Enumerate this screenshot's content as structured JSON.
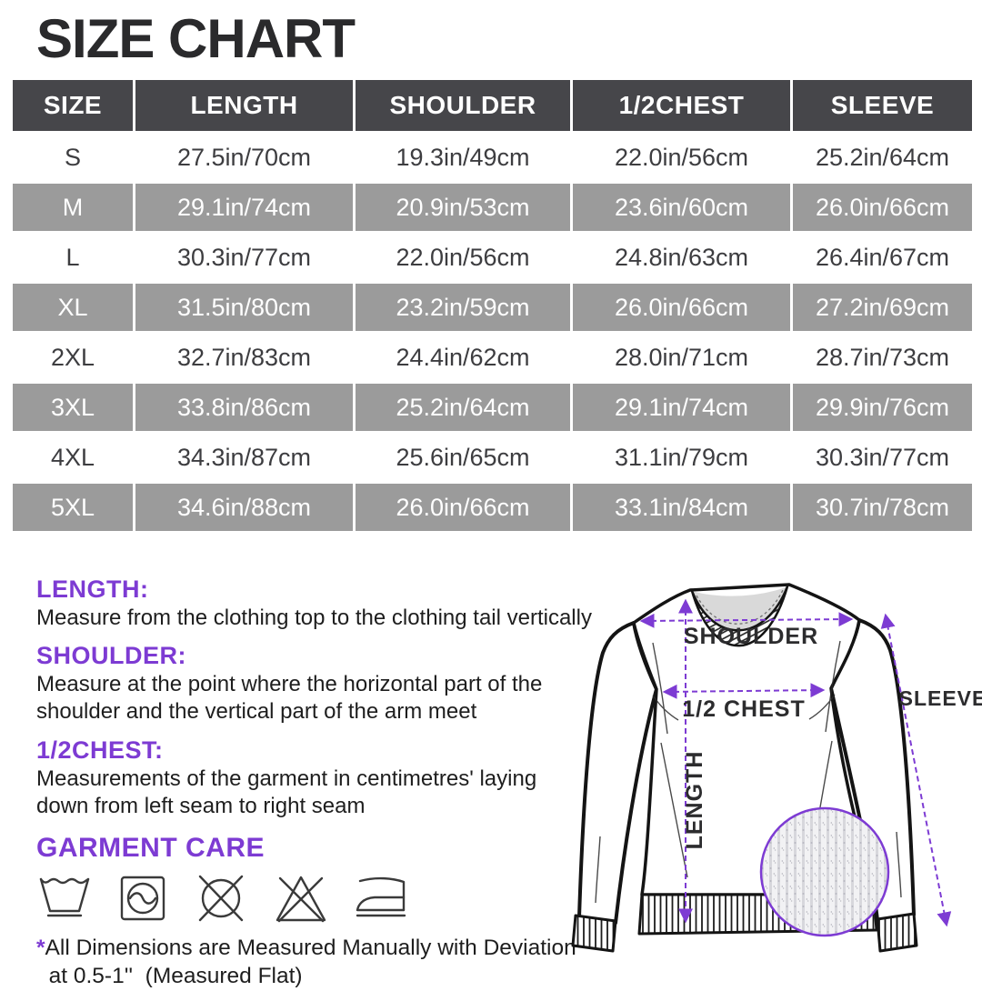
{
  "page": {
    "title": "SIZE CHART"
  },
  "table": {
    "columns": [
      "SIZE",
      "LENGTH",
      "SHOULDER",
      "1/2CHEST",
      "SLEEVE"
    ],
    "rows": [
      {
        "size": "S",
        "values": [
          "27.5in/70cm",
          "19.3in/49cm",
          "22.0in/56cm",
          "25.2in/64cm"
        ]
      },
      {
        "size": "M",
        "values": [
          "29.1in/74cm",
          "20.9in/53cm",
          "23.6in/60cm",
          "26.0in/66cm"
        ]
      },
      {
        "size": "L",
        "values": [
          "30.3in/77cm",
          "22.0in/56cm",
          "24.8in/63cm",
          "26.4in/67cm"
        ]
      },
      {
        "size": "XL",
        "values": [
          "31.5in/80cm",
          "23.2in/59cm",
          "26.0in/66cm",
          "27.2in/69cm"
        ]
      },
      {
        "size": "2XL",
        "values": [
          "32.7in/83cm",
          "24.4in/62cm",
          "28.0in/71cm",
          "28.7in/73cm"
        ]
      },
      {
        "size": "3XL",
        "values": [
          "33.8in/86cm",
          "25.2in/64cm",
          "29.1in/74cm",
          "29.9in/76cm"
        ]
      },
      {
        "size": "4XL",
        "values": [
          "34.3in/87cm",
          "25.6in/65cm",
          "31.1in/79cm",
          "30.3in/77cm"
        ]
      },
      {
        "size": "5XL",
        "values": [
          "34.6in/88cm",
          "26.0in/66cm",
          "33.1in/84cm",
          "30.7in/78cm"
        ]
      }
    ]
  },
  "chart_data": {
    "type": "table",
    "columns": [
      "SIZE",
      "LENGTH",
      "SHOULDER",
      "1/2CHEST",
      "SLEEVE"
    ],
    "rows": [
      [
        "S",
        "27.5in/70cm",
        "19.3in/49cm",
        "22.0in/56cm",
        "25.2in/64cm"
      ],
      [
        "M",
        "29.1in/74cm",
        "20.9in/53cm",
        "23.6in/60cm",
        "26.0in/66cm"
      ],
      [
        "L",
        "30.3in/77cm",
        "22.0in/56cm",
        "24.8in/63cm",
        "26.4in/67cm"
      ],
      [
        "XL",
        "31.5in/80cm",
        "23.2in/59cm",
        "26.0in/66cm",
        "27.2in/69cm"
      ],
      [
        "2XL",
        "32.7in/83cm",
        "24.4in/62cm",
        "28.0in/71cm",
        "28.7in/73cm"
      ],
      [
        "3XL",
        "33.8in/86cm",
        "25.2in/64cm",
        "29.1in/74cm",
        "29.9in/76cm"
      ],
      [
        "4XL",
        "34.3in/87cm",
        "25.6in/65cm",
        "31.1in/79cm",
        "30.3in/77cm"
      ],
      [
        "5XL",
        "34.6in/88cm",
        "26.0in/66cm",
        "33.1in/84cm",
        "30.7in/78cm"
      ]
    ],
    "title": "SIZE CHART"
  },
  "sections": [
    {
      "heading": "LENGTH:",
      "body": "Measure from the clothing top to the clothing tail vertically"
    },
    {
      "heading": "SHOULDER:",
      "body": "Measure at the point where the horizontal part of the\nshoulder and the vertical part of the arm meet"
    },
    {
      "heading": "1/2CHEST:",
      "body": "Measurements of the garment in centimetres' laying\ndown from left seam to right seam"
    }
  ],
  "garment_care": {
    "heading": "GARMENT CARE",
    "icons": [
      "wash-tub-icon",
      "machine-wash-icon",
      "do-not-dry-clean-icon",
      "do-not-bleach-icon",
      "iron-icon"
    ]
  },
  "footnote": {
    "star": "*",
    "text": "All Dimensions are Measured Manually with Deviation\n  at 0.5-1''  (Measured Flat)"
  },
  "diagram": {
    "labels": {
      "shoulder": "SHOULDER",
      "half_chest": "1/2 CHEST",
      "length": "LENGTH",
      "sleeve": "SLEEVE"
    }
  },
  "colors": {
    "accent_purple": "#7d3bd3",
    "header_bg": "#46464a",
    "row_gray": "#9b9b9b",
    "title_color": "#2a2a2c"
  }
}
